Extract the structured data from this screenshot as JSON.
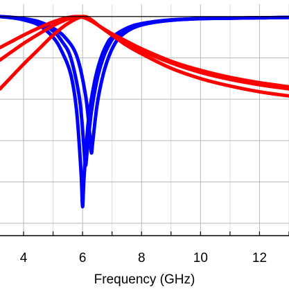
{
  "chart_data": {
    "type": "line",
    "title": "",
    "xlabel": "Frequency (GHz)",
    "ylabel": "",
    "xlim": [
      3.2,
      13.0
    ],
    "ylim": [
      -5.3,
      0.3
    ],
    "x_ticks": [
      4,
      6,
      8,
      10,
      12
    ],
    "y_gridlines": [
      0,
      -1,
      -2,
      -3,
      -4,
      -5
    ],
    "grid": true,
    "legend": "none",
    "series": [
      {
        "color": "#0000ff",
        "x": [
          3.2,
          3.6,
          4.0,
          4.5,
          5.0,
          5.3,
          5.6,
          5.8,
          5.95,
          6.0,
          6.05,
          6.2,
          6.4,
          6.6,
          6.8,
          7.0,
          7.5,
          8.0,
          9.0,
          10.0,
          11.0,
          12.0,
          13.0
        ],
        "y": [
          0.0,
          -0.03,
          -0.08,
          -0.2,
          -0.5,
          -0.85,
          -1.4,
          -2.3,
          -3.8,
          -4.6,
          -3.9,
          -2.5,
          -1.6,
          -1.05,
          -0.7,
          -0.5,
          -0.28,
          -0.17,
          -0.08,
          -0.05,
          -0.04,
          -0.03,
          -0.02
        ]
      },
      {
        "color": "#0000ff",
        "x": [
          3.2,
          3.6,
          4.0,
          4.5,
          5.0,
          5.3,
          5.6,
          5.9,
          6.05,
          6.1,
          6.15,
          6.3,
          6.5,
          6.7,
          6.9,
          7.1,
          7.5,
          8.0,
          9.0,
          10.0,
          11.0,
          12.0,
          13.0
        ],
        "y": [
          0.0,
          -0.02,
          -0.06,
          -0.15,
          -0.35,
          -0.6,
          -1.0,
          -2.0,
          -3.2,
          -3.6,
          -3.3,
          -2.3,
          -1.5,
          -1.0,
          -0.68,
          -0.48,
          -0.3,
          -0.18,
          -0.09,
          -0.05,
          -0.04,
          -0.03,
          -0.02
        ]
      },
      {
        "color": "#0000ff",
        "x": [
          3.2,
          3.6,
          4.0,
          4.5,
          5.0,
          5.4,
          5.8,
          6.1,
          6.25,
          6.3,
          6.35,
          6.5,
          6.7,
          6.9,
          7.1,
          7.3,
          7.7,
          8.2,
          9.0,
          10.0,
          11.0,
          12.0,
          13.0
        ],
        "y": [
          0.0,
          -0.02,
          -0.05,
          -0.12,
          -0.28,
          -0.5,
          -0.95,
          -1.9,
          -2.9,
          -3.3,
          -3.0,
          -2.1,
          -1.4,
          -0.95,
          -0.65,
          -0.47,
          -0.28,
          -0.17,
          -0.09,
          -0.05,
          -0.04,
          -0.03,
          -0.02
        ]
      },
      {
        "color": "#ff0000",
        "x": [
          3.2,
          3.6,
          4.0,
          4.5,
          5.0,
          5.5,
          6.0,
          6.3,
          6.6,
          7.0,
          7.5,
          8.0,
          9.0,
          10.0,
          11.0,
          12.0,
          13.0
        ],
        "y": [
          -1.75,
          -1.45,
          -1.15,
          -0.8,
          -0.45,
          -0.17,
          0.0,
          -0.08,
          -0.25,
          -0.45,
          -0.7,
          -0.9,
          -1.25,
          -1.5,
          -1.68,
          -1.82,
          -1.92
        ]
      },
      {
        "color": "#ff0000",
        "x": [
          3.2,
          3.6,
          4.0,
          4.5,
          5.0,
          5.5,
          5.9,
          6.2,
          6.5,
          7.0,
          7.5,
          8.0,
          9.0,
          10.0,
          11.0,
          12.0,
          13.0
        ],
        "y": [
          -1.05,
          -0.85,
          -0.65,
          -0.43,
          -0.22,
          -0.06,
          0.0,
          -0.06,
          -0.2,
          -0.42,
          -0.62,
          -0.82,
          -1.12,
          -1.35,
          -1.52,
          -1.65,
          -1.75
        ]
      },
      {
        "color": "#ff0000",
        "x": [
          3.2,
          3.6,
          4.0,
          4.5,
          5.0,
          5.4,
          5.8,
          6.1,
          6.4,
          6.9,
          7.5,
          8.0,
          9.0,
          10.0,
          11.0,
          12.0,
          13.0
        ],
        "y": [
          -0.75,
          -0.6,
          -0.45,
          -0.28,
          -0.13,
          -0.04,
          0.0,
          -0.04,
          -0.15,
          -0.38,
          -0.6,
          -0.78,
          -1.08,
          -1.3,
          -1.47,
          -1.6,
          -1.7
        ]
      }
    ]
  }
}
